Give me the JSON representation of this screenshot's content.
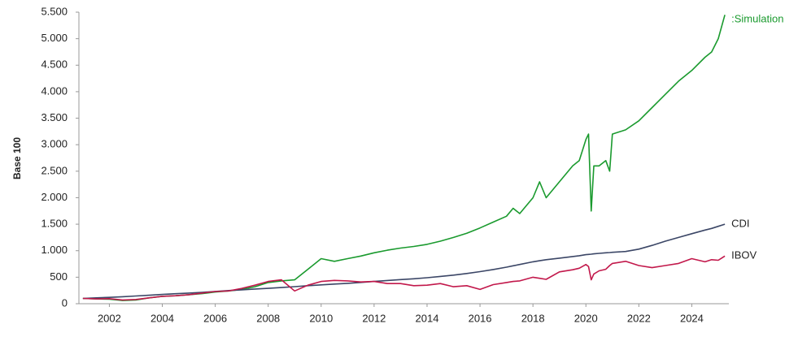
{
  "chart_data": {
    "type": "line",
    "y_label": "Base 100",
    "x": [
      2001,
      2001.5,
      2002,
      2002.5,
      2003,
      2003.5,
      2004,
      2004.5,
      2005,
      2005.5,
      2006,
      2006.5,
      2007,
      2007.5,
      2008,
      2008.5,
      2009,
      2009.5,
      2010,
      2010.5,
      2011,
      2011.5,
      2012,
      2012.5,
      2013,
      2013.5,
      2014,
      2014.5,
      2015,
      2015.5,
      2016,
      2016.5,
      2017,
      2017.25,
      2017.5,
      2018,
      2018.25,
      2018.5,
      2019,
      2019.5,
      2019.75,
      2020,
      2020.1,
      2020.2,
      2020.3,
      2020.5,
      2020.75,
      2020.9,
      2021,
      2021.5,
      2022,
      2022.5,
      2023,
      2023.5,
      2024,
      2024.5,
      2024.75,
      2025,
      2025.25
    ],
    "series": [
      {
        "name": ":Simulation",
        "color": "#1a9a2e",
        "values": [
          100,
          90,
          85,
          60,
          70,
          110,
          140,
          150,
          170,
          190,
          220,
          240,
          270,
          320,
          400,
          430,
          450,
          650,
          850,
          800,
          850,
          900,
          960,
          1010,
          1050,
          1080,
          1120,
          1180,
          1250,
          1330,
          1430,
          1540,
          1650,
          1800,
          1700,
          2000,
          2300,
          2000,
          2300,
          2600,
          2700,
          3100,
          3200,
          1750,
          2600,
          2600,
          2700,
          2500,
          3200,
          3280,
          3450,
          3700,
          3950,
          4200,
          4400,
          4650,
          4750,
          5000,
          5450
        ]
      },
      {
        "name": "CDI",
        "color": "#3b4666",
        "values": [
          100,
          110,
          120,
          132,
          145,
          160,
          175,
          188,
          200,
          215,
          232,
          248,
          262,
          277,
          290,
          305,
          322,
          340,
          355,
          370,
          385,
          402,
          420,
          438,
          455,
          470,
          490,
          515,
          540,
          570,
          605,
          645,
          690,
          715,
          740,
          790,
          810,
          830,
          860,
          890,
          905,
          925,
          930,
          935,
          940,
          950,
          960,
          965,
          970,
          985,
          1030,
          1100,
          1180,
          1250,
          1320,
          1390,
          1420,
          1460,
          1500
        ]
      },
      {
        "name": "IBOV",
        "color": "#c2184b",
        "values": [
          100,
          90,
          95,
          70,
          80,
          110,
          140,
          150,
          170,
          200,
          230,
          240,
          290,
          350,
          420,
          450,
          240,
          350,
          420,
          440,
          430,
          410,
          420,
          380,
          380,
          340,
          350,
          380,
          320,
          340,
          270,
          360,
          400,
          420,
          430,
          500,
          480,
          460,
          600,
          640,
          670,
          740,
          700,
          450,
          560,
          620,
          650,
          720,
          760,
          800,
          720,
          680,
          720,
          760,
          850,
          790,
          830,
          820,
          900
        ]
      }
    ],
    "xlim": [
      2000.85,
      2025.4
    ],
    "xticks": [
      2002,
      2004,
      2006,
      2008,
      2010,
      2012,
      2014,
      2016,
      2018,
      2020,
      2022,
      2024
    ],
    "ylim": [
      0,
      5500
    ],
    "yticks": [
      0,
      500,
      {
        "value": 1000,
        "label": "1.000"
      },
      {
        "value": 1500,
        "label": "1.500"
      },
      {
        "value": 2000,
        "label": "2.000"
      },
      {
        "value": 2500,
        "label": "2.500"
      },
      {
        "value": 3000,
        "label": "3.000"
      },
      {
        "value": 3500,
        "label": "3.500"
      },
      {
        "value": 4000,
        "label": "4.000"
      },
      {
        "value": 4500,
        "label": "4.500"
      },
      {
        "value": 5000,
        "label": "5.000"
      },
      {
        "value": 5500,
        "label": "5.500"
      }
    ],
    "grid": false
  }
}
